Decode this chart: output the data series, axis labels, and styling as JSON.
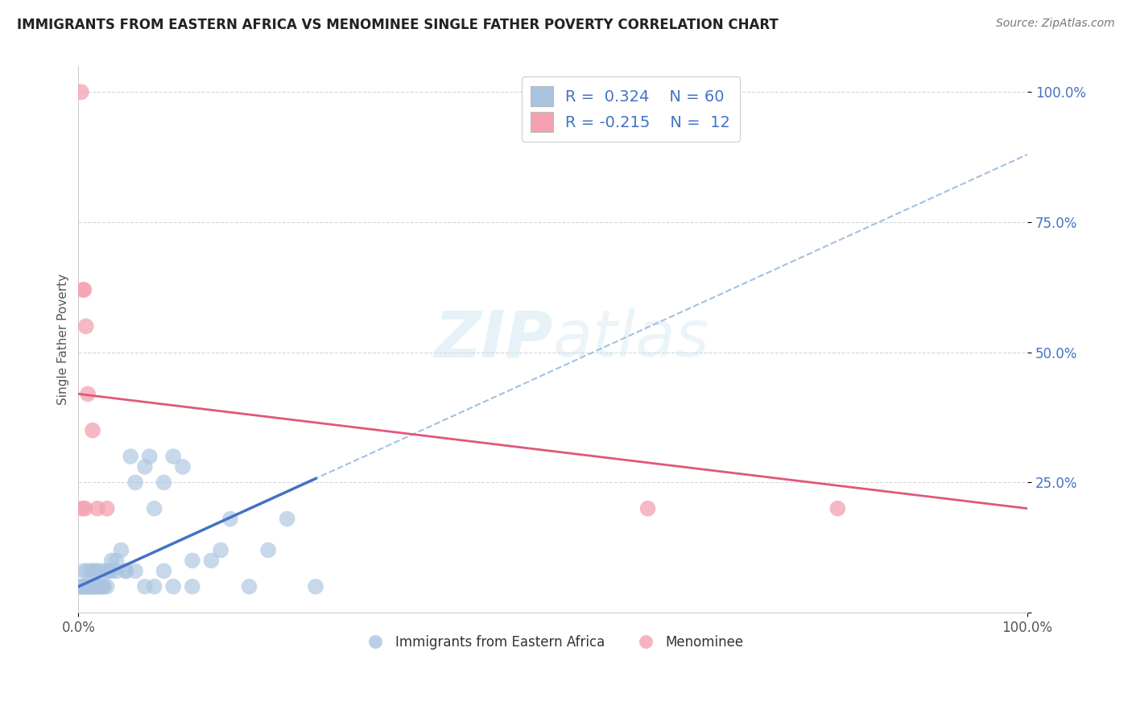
{
  "title": "IMMIGRANTS FROM EASTERN AFRICA VS MENOMINEE SINGLE FATHER POVERTY CORRELATION CHART",
  "source": "Source: ZipAtlas.com",
  "ylabel": "Single Father Poverty",
  "r_blue": 0.324,
  "n_blue": 60,
  "r_pink": -0.215,
  "n_pink": 12,
  "blue_color": "#aac4e0",
  "blue_line_color": "#4472c4",
  "blue_dash_color": "#99bbdd",
  "pink_color": "#f4a0b0",
  "pink_line_color": "#e05878",
  "blue_scatter_x": [
    0.2,
    0.3,
    0.4,
    0.5,
    0.6,
    0.7,
    0.8,
    0.9,
    1.0,
    1.1,
    1.2,
    1.3,
    1.4,
    1.5,
    1.6,
    1.7,
    1.8,
    1.9,
    2.0,
    2.1,
    2.2,
    2.3,
    2.5,
    2.7,
    3.0,
    3.2,
    3.5,
    4.0,
    4.5,
    5.0,
    5.5,
    6.0,
    7.0,
    7.5,
    8.0,
    9.0,
    10.0,
    11.0,
    12.0,
    14.0,
    16.0,
    18.0,
    20.0,
    22.0,
    25.0,
    1.0,
    1.5,
    2.0,
    2.5,
    3.0,
    3.5,
    4.0,
    5.0,
    6.0,
    7.0,
    8.0,
    9.0,
    10.0,
    12.0,
    15.0
  ],
  "blue_scatter_y": [
    5.0,
    5.0,
    5.0,
    5.0,
    8.0,
    5.0,
    5.0,
    8.0,
    5.0,
    5.0,
    5.0,
    5.0,
    8.0,
    5.0,
    5.0,
    5.0,
    5.0,
    8.0,
    8.0,
    5.0,
    5.0,
    5.0,
    8.0,
    5.0,
    8.0,
    8.0,
    10.0,
    10.0,
    12.0,
    8.0,
    30.0,
    25.0,
    28.0,
    30.0,
    20.0,
    25.0,
    30.0,
    28.0,
    10.0,
    10.0,
    18.0,
    5.0,
    12.0,
    18.0,
    5.0,
    5.0,
    8.0,
    5.0,
    5.0,
    5.0,
    8.0,
    8.0,
    8.0,
    8.0,
    5.0,
    5.0,
    8.0,
    5.0,
    5.0,
    12.0
  ],
  "pink_scatter_x": [
    0.3,
    0.5,
    0.6,
    0.8,
    1.0,
    1.5,
    2.0,
    3.0,
    60.0,
    80.0,
    0.4,
    0.7
  ],
  "pink_scatter_y": [
    100.0,
    62.0,
    62.0,
    55.0,
    42.0,
    35.0,
    20.0,
    20.0,
    20.0,
    20.0,
    20.0,
    20.0
  ],
  "xlim": [
    0,
    100
  ],
  "ylim": [
    0,
    105
  ],
  "blue_trendline_x": [
    0,
    100
  ],
  "blue_trendline_y": [
    5,
    88
  ],
  "blue_solid_x0": 0,
  "blue_solid_x1": 25,
  "pink_trendline_x": [
    0,
    100
  ],
  "pink_trendline_y": [
    42,
    20
  ]
}
